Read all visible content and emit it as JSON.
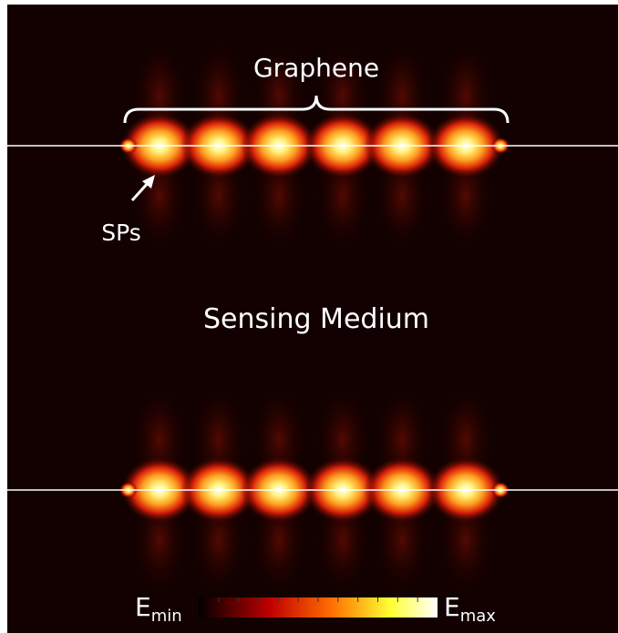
{
  "labels": {
    "graphene": "Graphene",
    "sps": "SPs",
    "medium": "Sensing Medium"
  },
  "colorbar": {
    "min": {
      "base": "E",
      "sub": "min"
    },
    "max": {
      "base": "E",
      "sub": "max"
    }
  }
}
